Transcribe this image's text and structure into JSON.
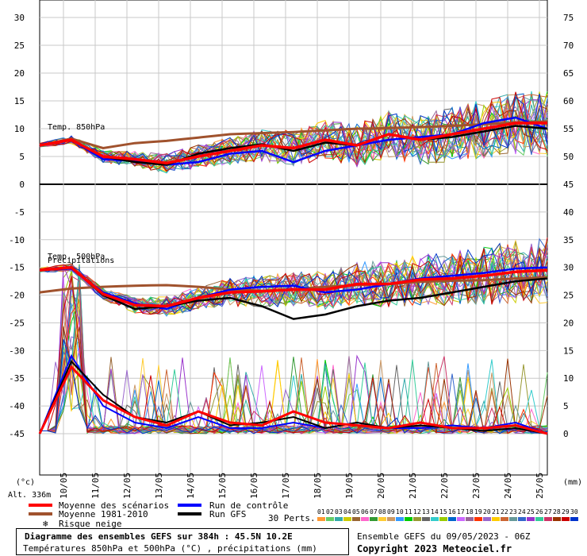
{
  "chart_data": {
    "type": "line",
    "x_dates": [
      "10/05",
      "11/05",
      "12/05",
      "13/05",
      "14/05",
      "15/05",
      "16/05",
      "17/05",
      "18/05",
      "19/05",
      "20/05",
      "21/05",
      "22/05",
      "23/05",
      "24/05",
      "25/05"
    ],
    "left_axis_ticks": [
      "30",
      "25",
      "20",
      "15",
      "10",
      "5",
      "0",
      "-5",
      "-10",
      "-15",
      "-20",
      "-25",
      "-30",
      "-35",
      "-40",
      "-45"
    ],
    "right_axis_ticks": [
      "75",
      "70",
      "65",
      "60",
      "55",
      "50",
      "45",
      "40",
      "35",
      "30",
      "25",
      "20",
      "15",
      "10",
      "5",
      "0"
    ],
    "left_unit": "(°c)",
    "right_unit": "(mm)",
    "altitude_label": "Alt. 336m",
    "panel_labels": {
      "t850": "Temp. 850hPa",
      "t500": "Temp. 500hPa",
      "precip": "Précipitations"
    },
    "legend": {
      "mean": "Moyenne des scénarios",
      "climate": "Moyenne 1981-2010",
      "snow": "Risque neige",
      "control": "Run de contrôle",
      "gfs": "Run GFS",
      "perts": "30 Perts."
    },
    "members": [
      "01",
      "02",
      "03",
      "04",
      "05",
      "06",
      "07",
      "08",
      "09",
      "10",
      "11",
      "12",
      "13",
      "14",
      "15",
      "16",
      "17",
      "18",
      "19",
      "20",
      "21",
      "22",
      "23",
      "24",
      "25",
      "26",
      "27",
      "28",
      "29",
      "30"
    ],
    "member_colors": [
      "#ff9933",
      "#66cc66",
      "#33aaaa",
      "#cccc00",
      "#996633",
      "#ff66cc",
      "#339933",
      "#ffcc33",
      "#cc9966",
      "#3399ff",
      "#00cc00",
      "#999933",
      "#666666",
      "#33cccc",
      "#99cc00",
      "#0066cc",
      "#cc66ff",
      "#996699",
      "#ff3300",
      "#9966cc",
      "#ffcc00",
      "#cc6633",
      "#669999",
      "#3366cc",
      "#9933cc",
      "#33cc99",
      "#cc3366",
      "#993300",
      "#cc0000",
      "#0033cc"
    ],
    "t850": {
      "mean": [
        7,
        8,
        5,
        4.5,
        3.8,
        5,
        6,
        7,
        6.5,
        8,
        7,
        9,
        8,
        9,
        10,
        11,
        11
      ],
      "climate": [
        7,
        8.2,
        6.5,
        7.4,
        7.8,
        8.4,
        9,
        9.2,
        9.4,
        9.7,
        10,
        10.1,
        10.3,
        10.5,
        10.8,
        11.1,
        11.3
      ],
      "control": [
        7,
        8,
        4.5,
        4.2,
        3.5,
        4,
        5.5,
        6,
        4,
        6,
        7,
        8,
        8.5,
        9,
        11,
        12,
        10
      ],
      "gfs": [
        7,
        8,
        5,
        4,
        3.5,
        5.5,
        6.5,
        7.2,
        6,
        7.5,
        7,
        9,
        8,
        8.5,
        9.5,
        10.5,
        10
      ]
    },
    "t500": {
      "mean": [
        -15.5,
        -15,
        -19.8,
        -21.8,
        -22,
        -20.5,
        -19.5,
        -19.3,
        -19,
        -19,
        -18,
        -18,
        -17.2,
        -17,
        -16.5,
        -15.8,
        -15.5
      ],
      "climate": [
        -19.5,
        -18.8,
        -18.5,
        -18.3,
        -18.2,
        -18.5,
        -19,
        -19.2,
        -19,
        -18.5,
        -18.2,
        -18,
        -17.6,
        -17.4,
        -17.3,
        -17,
        -16.8
      ],
      "control": [
        -15.5,
        -15.2,
        -19.5,
        -21.5,
        -22.5,
        -20.5,
        -19,
        -18.5,
        -18.3,
        -19.5,
        -19,
        -18,
        -17,
        -16.5,
        -16,
        -15.2,
        -15
      ],
      "gfs": [
        -15.5,
        -15,
        -20,
        -22.5,
        -22,
        -21,
        -20.5,
        -22,
        -24.3,
        -23.5,
        -22,
        -21,
        -20.5,
        -19.5,
        -18.5,
        -17.5,
        -17
      ]
    },
    "precip": {
      "mean": [
        0,
        12,
        6,
        3,
        1.5,
        4,
        2,
        1.5,
        4,
        2,
        1.5,
        1,
        2,
        1,
        1,
        1.5,
        0
      ],
      "control": [
        0,
        14,
        5,
        2,
        1,
        3,
        1,
        1,
        2,
        1,
        2,
        1,
        1,
        1.5,
        1,
        2,
        0
      ],
      "gfs": [
        0,
        13,
        7,
        3,
        2,
        4,
        1.5,
        2,
        3,
        1,
        2,
        1,
        1.5,
        1,
        0.5,
        1,
        0
      ]
    }
  },
  "footer": {
    "title": "Diagramme des ensembles GEFS sur 384h : 45.5N 10.2E",
    "subtitle": "Températures 850hPa et 500hPa (°C) , précipitations (mm)",
    "run": "Ensemble GEFS du 09/05/2023 - 06Z",
    "copyright": "Copyright 2023 Meteociel.fr"
  }
}
